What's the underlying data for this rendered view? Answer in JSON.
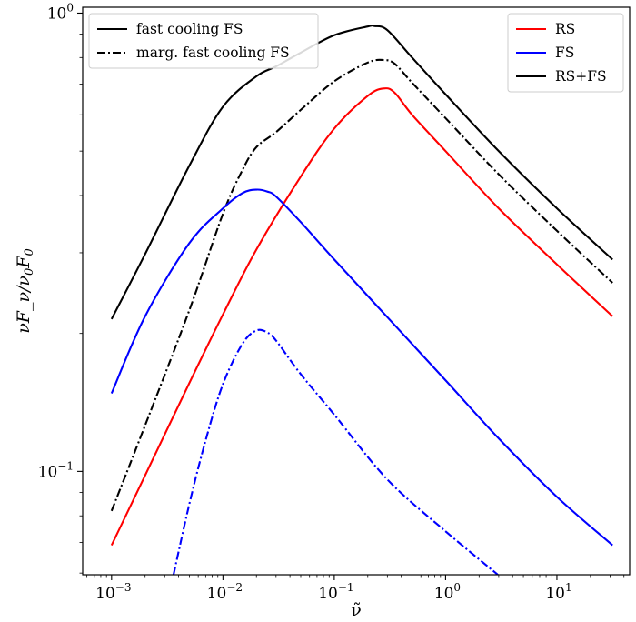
{
  "chart_data": {
    "type": "line",
    "title": "",
    "xlabel": "ν̃",
    "ylabel": "νF_ν/ν_0F_0",
    "xscale": "log",
    "yscale": "log",
    "xlim": [
      0.00055,
      45
    ],
    "ylim": [
      0.0595,
      1.03
    ],
    "grid": false,
    "x_ticks": [
      {
        "value": 0.001,
        "base": "10",
        "exp": "−3"
      },
      {
        "value": 0.01,
        "base": "10",
        "exp": "−2"
      },
      {
        "value": 0.1,
        "base": "10",
        "exp": "−1"
      },
      {
        "value": 1,
        "base": "10",
        "exp": "0"
      },
      {
        "value": 10,
        "base": "10",
        "exp": "1"
      }
    ],
    "y_ticks": [
      {
        "value": 0.1,
        "base": "10",
        "exp": "−1"
      },
      {
        "value": 1,
        "base": "10",
        "exp": "0"
      }
    ],
    "legends": [
      {
        "placement": "top-left",
        "entries": [
          {
            "label": "fast cooling FS",
            "color": "#000000",
            "style": "solid"
          },
          {
            "label": "marg. fast cooling FS",
            "color": "#000000",
            "style": "dashdot"
          }
        ]
      },
      {
        "placement": "top-right",
        "entries": [
          {
            "label": "RS",
            "color": "#ff0000",
            "style": "solid"
          },
          {
            "label": "FS",
            "color": "#0000ff",
            "style": "solid"
          },
          {
            "label": "RS+FS",
            "color": "#000000",
            "style": "solid"
          }
        ]
      }
    ],
    "series": [
      {
        "name": "RS+FS",
        "color": "#000000",
        "style": "solid",
        "x": [
          0.001,
          0.002,
          0.005,
          0.01,
          0.02,
          0.03,
          0.05,
          0.1,
          0.2,
          0.23,
          0.3,
          0.5,
          1,
          3,
          10,
          31.6
        ],
        "y": [
          0.215,
          0.298,
          0.465,
          0.625,
          0.728,
          0.765,
          0.82,
          0.895,
          0.935,
          0.937,
          0.918,
          0.8,
          0.665,
          0.5,
          0.375,
          0.29
        ]
      },
      {
        "name": "",
        "color": "#000000",
        "style": "dashdot",
        "x": [
          0.001,
          0.002,
          0.005,
          0.01,
          0.015,
          0.02,
          0.03,
          0.05,
          0.1,
          0.2,
          0.28,
          0.35,
          0.5,
          1,
          3,
          10,
          31.6
        ],
        "y": [
          0.082,
          0.126,
          0.225,
          0.365,
          0.455,
          0.51,
          0.55,
          0.615,
          0.71,
          0.78,
          0.79,
          0.775,
          0.705,
          0.59,
          0.445,
          0.335,
          0.258
        ]
      },
      {
        "name": "RS",
        "color": "#ff0000",
        "style": "solid",
        "x": [
          0.001,
          0.002,
          0.005,
          0.01,
          0.02,
          0.05,
          0.1,
          0.2,
          0.28,
          0.35,
          0.5,
          1,
          3,
          10,
          31.6
        ],
        "y": [
          0.069,
          0.098,
          0.156,
          0.22,
          0.305,
          0.44,
          0.56,
          0.66,
          0.685,
          0.67,
          0.6,
          0.5,
          0.375,
          0.283,
          0.218
        ]
      },
      {
        "name": "FS",
        "color": "#0000ff",
        "style": "solid",
        "x": [
          0.001,
          0.002,
          0.005,
          0.01,
          0.015,
          0.02,
          0.025,
          0.03,
          0.05,
          0.1,
          0.3,
          1,
          3,
          10,
          31.6
        ],
        "y": [
          0.148,
          0.218,
          0.315,
          0.375,
          0.405,
          0.412,
          0.408,
          0.398,
          0.35,
          0.29,
          0.217,
          0.158,
          0.118,
          0.088,
          0.069
        ]
      },
      {
        "name": "",
        "color": "#0000ff",
        "style": "dashdot",
        "x": [
          0.0036,
          0.005,
          0.007,
          0.01,
          0.015,
          0.02,
          0.025,
          0.03,
          0.05,
          0.1,
          0.3,
          1,
          2.95
        ],
        "y": [
          0.0595,
          0.085,
          0.117,
          0.155,
          0.19,
          0.203,
          0.201,
          0.193,
          0.163,
          0.133,
          0.096,
          0.074,
          0.0595
        ]
      }
    ]
  }
}
